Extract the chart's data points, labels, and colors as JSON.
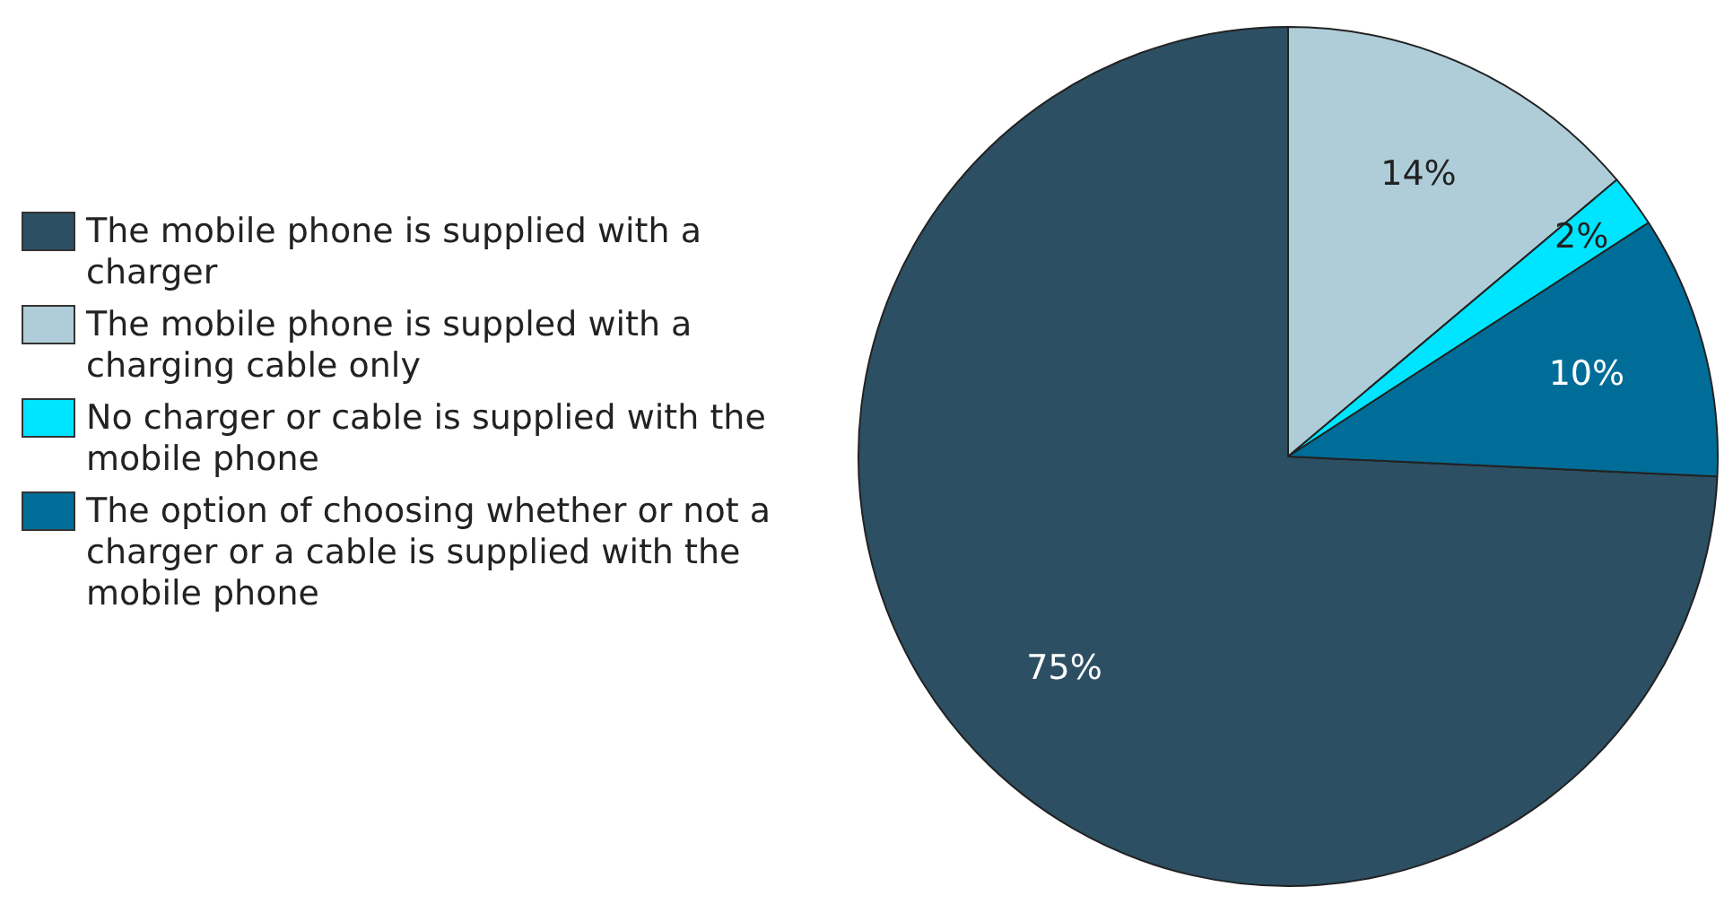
{
  "chart_data": {
    "type": "pie",
    "categories": [
      "The mobile phone is supplied with a charger",
      "The mobile phone is suppled with a charging cable only",
      "No charger or cable is supplied with the mobile phone",
      "The option of choosing whether or not a charger or a cable is supplied with the mobile phone"
    ],
    "values": [
      75,
      14,
      2,
      10
    ],
    "colors": [
      "#2d4f63",
      "#afcdd8",
      "#00e5ff",
      "#006d98"
    ],
    "value_labels": [
      "75%",
      "14%",
      "2%",
      "10%"
    ],
    "legend": "left"
  }
}
